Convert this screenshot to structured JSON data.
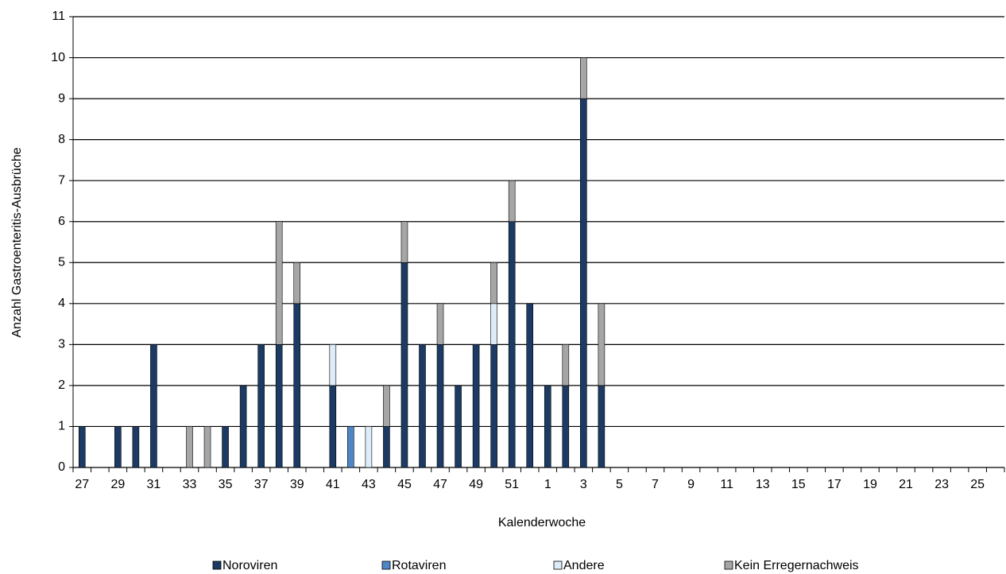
{
  "chart_data": {
    "type": "stacked-bar",
    "x_label": "Kalenderwoche",
    "y_label": "Anzahl Gastroenteritis-Ausbrüche",
    "categories": [
      "27",
      null,
      "29",
      null,
      "31",
      null,
      "33",
      null,
      "35",
      null,
      "37",
      null,
      "39",
      null,
      "41",
      null,
      "43",
      null,
      "45",
      null,
      "47",
      null,
      "49",
      null,
      "51",
      null,
      "1",
      null,
      "3",
      null,
      "5",
      null,
      "7",
      null,
      "9",
      null,
      "11",
      null,
      "13",
      null,
      "15",
      null,
      "17",
      null,
      "19",
      null,
      "21",
      null,
      "23",
      null,
      "25",
      null
    ],
    "series": [
      {
        "name": "Noroviren",
        "color": "#1c3a63",
        "values": [
          1,
          0,
          1,
          1,
          3,
          0,
          0,
          0,
          1,
          2,
          3,
          3,
          4,
          0,
          2,
          0,
          0,
          1,
          5,
          3,
          3,
          2,
          3,
          3,
          6,
          4,
          2,
          2,
          9,
          2,
          0,
          0,
          0,
          0,
          0,
          0,
          0,
          0,
          0,
          0,
          0,
          0,
          0,
          0,
          0,
          0,
          0,
          0,
          0,
          0,
          0,
          0
        ]
      },
      {
        "name": "Rotaviren",
        "color": "#4f86c6",
        "values": [
          0,
          0,
          0,
          0,
          0,
          0,
          0,
          0,
          0,
          0,
          0,
          0,
          0,
          0,
          0,
          1,
          0,
          0,
          0,
          0,
          0,
          0,
          0,
          0,
          0,
          0,
          0,
          0,
          0,
          0,
          0,
          0,
          0,
          0,
          0,
          0,
          0,
          0,
          0,
          0,
          0,
          0,
          0,
          0,
          0,
          0,
          0,
          0,
          0,
          0,
          0,
          0
        ]
      },
      {
        "name": "Andere",
        "color": "#dcecf8",
        "values": [
          0,
          0,
          0,
          0,
          0,
          0,
          0,
          0,
          0,
          0,
          0,
          0,
          0,
          0,
          1,
          0,
          1,
          0,
          0,
          0,
          0,
          0,
          0,
          1,
          0,
          0,
          0,
          0,
          0,
          0,
          0,
          0,
          0,
          0,
          0,
          0,
          0,
          0,
          0,
          0,
          0,
          0,
          0,
          0,
          0,
          0,
          0,
          0,
          0,
          0,
          0,
          0
        ]
      },
      {
        "name": "Kein Erregernachweis",
        "color": "#a6a6a6",
        "values": [
          0,
          0,
          0,
          0,
          0,
          0,
          1,
          1,
          0,
          0,
          0,
          3,
          1,
          0,
          0,
          0,
          0,
          1,
          1,
          0,
          1,
          0,
          0,
          1,
          1,
          0,
          0,
          1,
          1,
          2,
          0,
          0,
          0,
          0,
          0,
          0,
          0,
          0,
          0,
          0,
          0,
          0,
          0,
          0,
          0,
          0,
          0,
          0,
          0,
          0,
          0,
          0
        ]
      }
    ],
    "ylim": [
      0,
      11
    ],
    "yticks": [
      0,
      1,
      2,
      3,
      4,
      5,
      6,
      7,
      8,
      9,
      10,
      11
    ],
    "grid": true
  }
}
